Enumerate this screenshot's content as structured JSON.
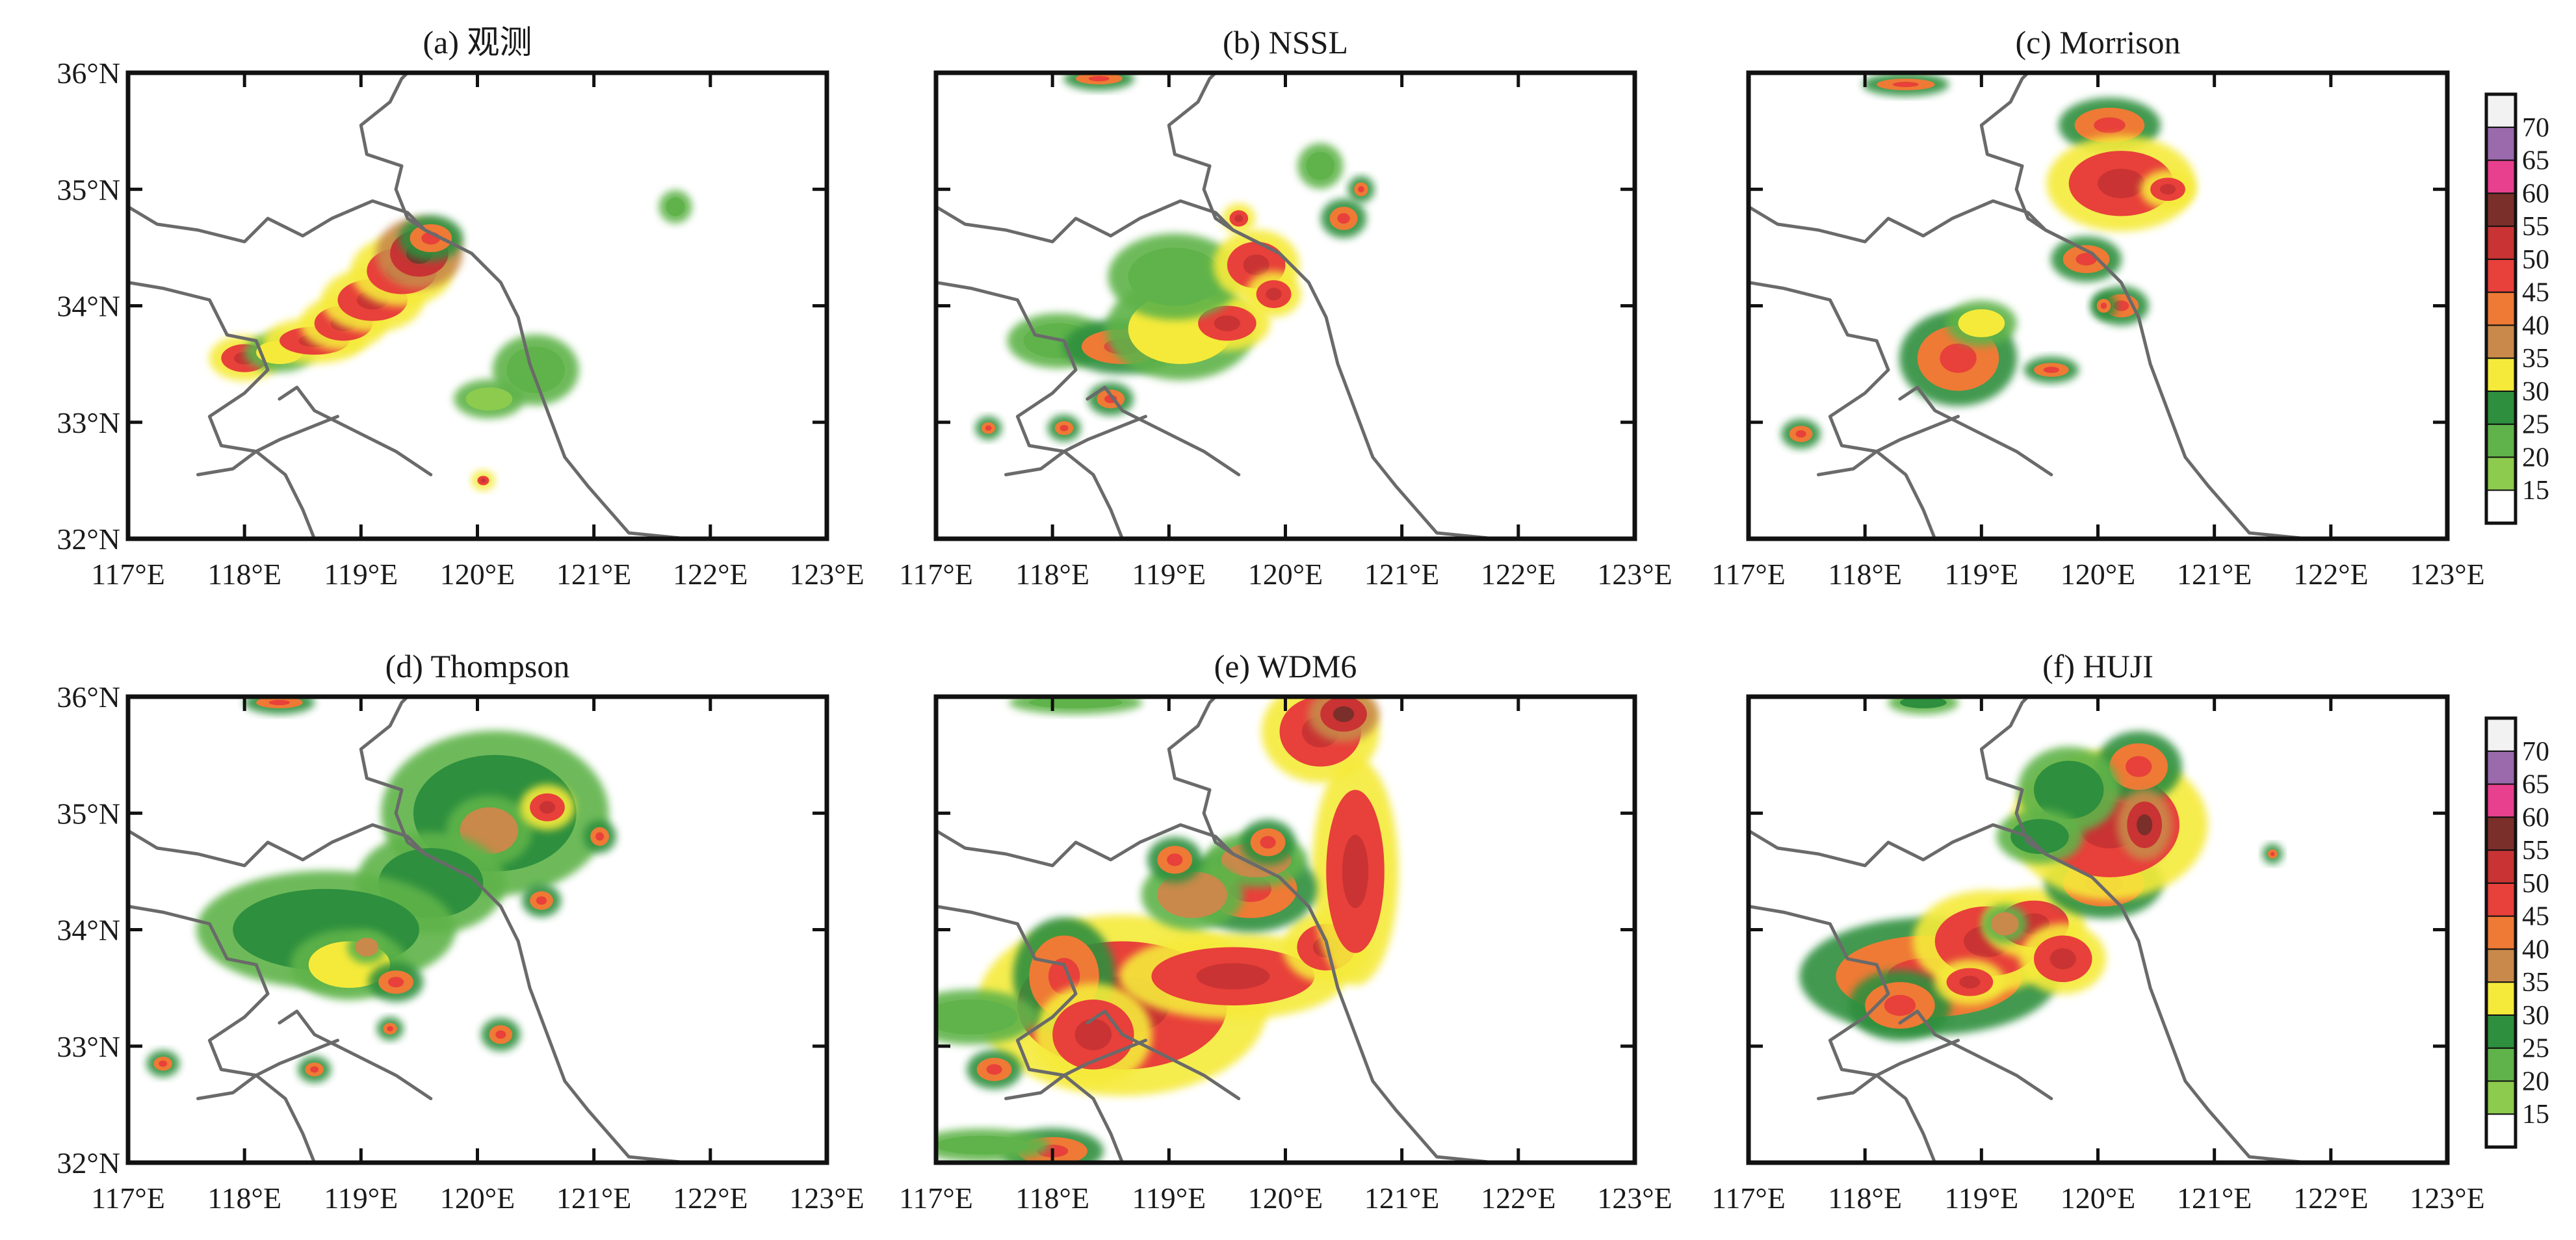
{
  "figure": {
    "panels": [
      {
        "id": "a",
        "title": "(a) 观测"
      },
      {
        "id": "b",
        "title": "(b) NSSL"
      },
      {
        "id": "c",
        "title": "(c) Morrison"
      },
      {
        "id": "d",
        "title": "(d) Thompson"
      },
      {
        "id": "e",
        "title": "(e) WDM6"
      },
      {
        "id": "f",
        "title": "(f) HUJI"
      }
    ],
    "lon_ticks": [
      "117°E",
      "118°E",
      "119°E",
      "120°E",
      "121°E",
      "122°E",
      "123°E"
    ],
    "lat_ticks": [
      "36°N",
      "35°N",
      "34°N",
      "33°N",
      "32°N"
    ],
    "colorbar": {
      "labels": [
        "70",
        "65",
        "60",
        "55",
        "50",
        "45",
        "40",
        "35",
        "30",
        "25",
        "20",
        "15"
      ],
      "levels": [
        15,
        20,
        25,
        30,
        35,
        40,
        45,
        50,
        55,
        60,
        65,
        70
      ],
      "colors": [
        "#ffffff",
        "#8ccb4e",
        "#5fb34a",
        "#2e8f3e",
        "#f5ea3a",
        "#c8894a",
        "#ee7a35",
        "#e8403a",
        "#c93333",
        "#7a2f2a",
        "#e8408e",
        "#9a6aac",
        "#f2f2f2"
      ]
    }
  },
  "chart_data": {
    "type": "heatmap",
    "x_range": [
      117,
      123
    ],
    "y_range": [
      32,
      36
    ],
    "x_unit": "°E",
    "y_unit": "°N",
    "levels": [
      15,
      20,
      25,
      30,
      35,
      40,
      45,
      50,
      55,
      60,
      65,
      70
    ],
    "panels": [
      {
        "title": "(a) 观测",
        "cells": [
          [
            118.0,
            33.55,
            0.2,
            0.12,
            47
          ],
          [
            118.3,
            33.6,
            0.2,
            0.1,
            30
          ],
          [
            118.6,
            33.7,
            0.3,
            0.12,
            45
          ],
          [
            118.85,
            33.85,
            0.25,
            0.15,
            47
          ],
          [
            119.1,
            34.05,
            0.3,
            0.18,
            45
          ],
          [
            119.35,
            34.3,
            0.3,
            0.2,
            48
          ],
          [
            119.5,
            34.45,
            0.25,
            0.2,
            50
          ],
          [
            119.6,
            34.58,
            0.18,
            0.12,
            40
          ],
          [
            120.5,
            33.45,
            0.25,
            0.2,
            20
          ],
          [
            120.1,
            33.2,
            0.2,
            0.1,
            18
          ],
          [
            121.7,
            34.85,
            0.08,
            0.08,
            22
          ],
          [
            120.05,
            32.5,
            0.05,
            0.04,
            45
          ]
        ]
      },
      {
        "title": "(b) NSSL",
        "cells": [
          [
            118.05,
            33.7,
            0.3,
            0.15,
            22
          ],
          [
            118.6,
            33.65,
            0.35,
            0.15,
            42
          ],
          [
            119.1,
            33.8,
            0.45,
            0.3,
            30
          ],
          [
            119.5,
            33.85,
            0.25,
            0.15,
            45
          ],
          [
            119.05,
            34.25,
            0.4,
            0.25,
            24
          ],
          [
            119.75,
            34.35,
            0.25,
            0.2,
            47
          ],
          [
            119.9,
            34.1,
            0.15,
            0.12,
            45
          ],
          [
            120.5,
            34.75,
            0.12,
            0.1,
            44
          ],
          [
            120.3,
            35.2,
            0.12,
            0.12,
            20
          ],
          [
            119.6,
            34.75,
            0.08,
            0.07,
            45
          ],
          [
            118.5,
            33.2,
            0.12,
            0.08,
            42
          ],
          [
            118.1,
            32.95,
            0.08,
            0.06,
            40
          ],
          [
            117.45,
            32.95,
            0.06,
            0.05,
            40
          ],
          [
            120.65,
            35.0,
            0.06,
            0.06,
            40
          ],
          [
            118.4,
            35.95,
            0.2,
            0.05,
            40
          ]
        ]
      },
      {
        "title": "(c) Morrison",
        "cells": [
          [
            120.1,
            35.55,
            0.3,
            0.15,
            40
          ],
          [
            120.2,
            35.05,
            0.45,
            0.28,
            45
          ],
          [
            120.6,
            35.0,
            0.15,
            0.1,
            47
          ],
          [
            119.9,
            34.4,
            0.2,
            0.12,
            42
          ],
          [
            120.2,
            34.0,
            0.15,
            0.1,
            44
          ],
          [
            118.8,
            33.55,
            0.35,
            0.28,
            40
          ],
          [
            119.0,
            33.85,
            0.2,
            0.12,
            30
          ],
          [
            117.45,
            32.9,
            0.1,
            0.07,
            44
          ],
          [
            119.6,
            33.45,
            0.15,
            0.06,
            40
          ],
          [
            120.05,
            34.0,
            0.06,
            0.06,
            40
          ],
          [
            118.35,
            35.9,
            0.25,
            0.05,
            40
          ]
        ]
      },
      {
        "title": "(d) Thompson",
        "cells": [
          [
            120.15,
            35.0,
            0.7,
            0.5,
            25
          ],
          [
            120.1,
            34.85,
            0.25,
            0.2,
            35
          ],
          [
            120.6,
            35.05,
            0.15,
            0.12,
            47
          ],
          [
            119.6,
            34.4,
            0.45,
            0.3,
            25
          ],
          [
            118.7,
            34.0,
            0.8,
            0.35,
            25
          ],
          [
            118.9,
            33.7,
            0.35,
            0.2,
            30
          ],
          [
            119.05,
            33.85,
            0.1,
            0.08,
            35
          ],
          [
            120.55,
            34.25,
            0.1,
            0.08,
            44
          ],
          [
            119.3,
            33.55,
            0.15,
            0.1,
            44
          ],
          [
            117.3,
            32.85,
            0.08,
            0.06,
            40
          ],
          [
            118.6,
            32.8,
            0.08,
            0.06,
            44
          ],
          [
            120.2,
            33.1,
            0.1,
            0.08,
            40
          ],
          [
            119.25,
            33.15,
            0.06,
            0.05,
            42
          ],
          [
            118.3,
            35.95,
            0.2,
            0.05,
            40
          ],
          [
            121.05,
            34.8,
            0.08,
            0.08,
            44
          ]
        ]
      },
      {
        "title": "(e) WDM6",
        "cells": [
          [
            118.6,
            33.35,
            0.9,
            0.55,
            47
          ],
          [
            118.1,
            33.6,
            0.3,
            0.35,
            40
          ],
          [
            118.35,
            33.1,
            0.35,
            0.3,
            47
          ],
          [
            119.55,
            33.6,
            0.7,
            0.25,
            48
          ],
          [
            120.35,
            33.85,
            0.25,
            0.2,
            49
          ],
          [
            120.6,
            34.5,
            0.25,
            0.7,
            49
          ],
          [
            119.7,
            34.35,
            0.4,
            0.25,
            40
          ],
          [
            119.75,
            34.6,
            0.3,
            0.15,
            35
          ],
          [
            119.2,
            34.3,
            0.3,
            0.2,
            35
          ],
          [
            120.3,
            35.7,
            0.35,
            0.3,
            47
          ],
          [
            120.5,
            35.85,
            0.2,
            0.15,
            50
          ],
          [
            119.85,
            34.75,
            0.15,
            0.12,
            44
          ],
          [
            117.3,
            33.25,
            0.4,
            0.15,
            24
          ],
          [
            117.5,
            32.8,
            0.15,
            0.1,
            44
          ],
          [
            118.0,
            32.1,
            0.3,
            0.12,
            44
          ],
          [
            117.4,
            32.15,
            0.4,
            0.08,
            24
          ],
          [
            118.2,
            35.95,
            0.4,
            0.05,
            24
          ],
          [
            119.05,
            34.6,
            0.15,
            0.12,
            44
          ]
        ]
      },
      {
        "title": "(f) HUJI",
        "cells": [
          [
            118.55,
            33.6,
            0.8,
            0.35,
            44
          ],
          [
            119.05,
            33.9,
            0.45,
            0.3,
            45
          ],
          [
            118.3,
            33.35,
            0.3,
            0.2,
            40
          ],
          [
            119.45,
            34.05,
            0.3,
            0.2,
            47
          ],
          [
            120.05,
            34.4,
            0.35,
            0.2,
            40
          ],
          [
            120.1,
            34.9,
            0.6,
            0.45,
            47
          ],
          [
            120.35,
            35.4,
            0.25,
            0.2,
            44
          ],
          [
            119.75,
            35.2,
            0.3,
            0.25,
            26
          ],
          [
            119.5,
            34.8,
            0.25,
            0.15,
            25
          ],
          [
            119.7,
            33.75,
            0.25,
            0.2,
            45
          ],
          [
            120.4,
            34.9,
            0.15,
            0.2,
            50
          ],
          [
            118.9,
            33.55,
            0.2,
            0.12,
            47
          ],
          [
            119.2,
            34.05,
            0.12,
            0.1,
            35
          ],
          [
            121.5,
            34.65,
            0.04,
            0.04,
            40
          ],
          [
            118.5,
            35.95,
            0.2,
            0.05,
            25
          ]
        ]
      }
    ]
  }
}
